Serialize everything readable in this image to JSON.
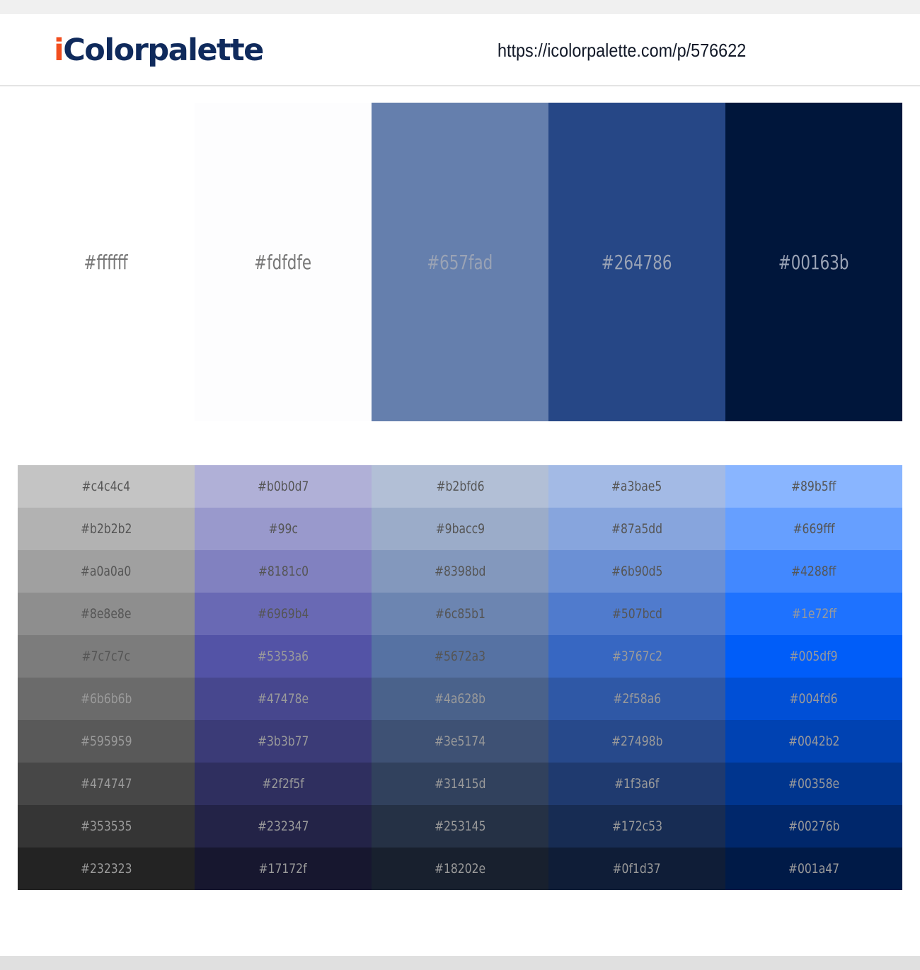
{
  "header": {
    "logo_prefix": "i",
    "logo_rest": "Colorpalette",
    "url": "https://icolorpalette.com/p/576622"
  },
  "colors": {
    "logo_accent": "#f24e1e",
    "logo_main": "#0f2a5c"
  },
  "palette": [
    "#ffffff",
    "#fdfdfe",
    "#657fad",
    "#264786",
    "#00163b"
  ],
  "shades": [
    [
      "#c4c4c4",
      "#b0b0d7",
      "#b2bfd6",
      "#a3bae5",
      "#89b5ff"
    ],
    [
      "#b2b2b2",
      "#99c",
      "#9bacc9",
      "#87a5dd",
      "#669fff"
    ],
    [
      "#a0a0a0",
      "#8181c0",
      "#8398bd",
      "#6b90d5",
      "#4288ff"
    ],
    [
      "#8e8e8e",
      "#6969b4",
      "#6c85b1",
      "#507bcd",
      "#1e72ff"
    ],
    [
      "#7c7c7c",
      "#5353a6",
      "#5672a3",
      "#3767c2",
      "#005df9"
    ],
    [
      "#6b6b6b",
      "#47478e",
      "#4a628b",
      "#2f58a6",
      "#004fd6"
    ],
    [
      "#595959",
      "#3b3b77",
      "#3e5174",
      "#27498b",
      "#0042b2"
    ],
    [
      "#474747",
      "#2f2f5f",
      "#31415d",
      "#1f3a6f",
      "#00358e"
    ],
    [
      "#353535",
      "#232347",
      "#253145",
      "#172c53",
      "#00276b"
    ],
    [
      "#232323",
      "#17172f",
      "#18202e",
      "#0f1d37",
      "#001a47"
    ]
  ]
}
